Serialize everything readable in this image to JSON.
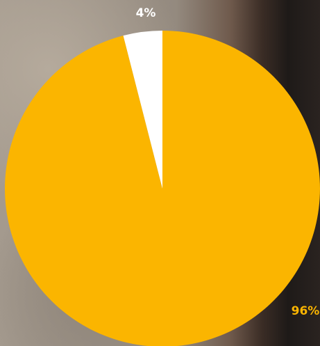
{
  "chart_data": {
    "type": "pie",
    "values": [
      96,
      4
    ],
    "value_labels": [
      "96%",
      "4%"
    ],
    "colors": [
      "#fbb500",
      "#ffffff"
    ]
  }
}
